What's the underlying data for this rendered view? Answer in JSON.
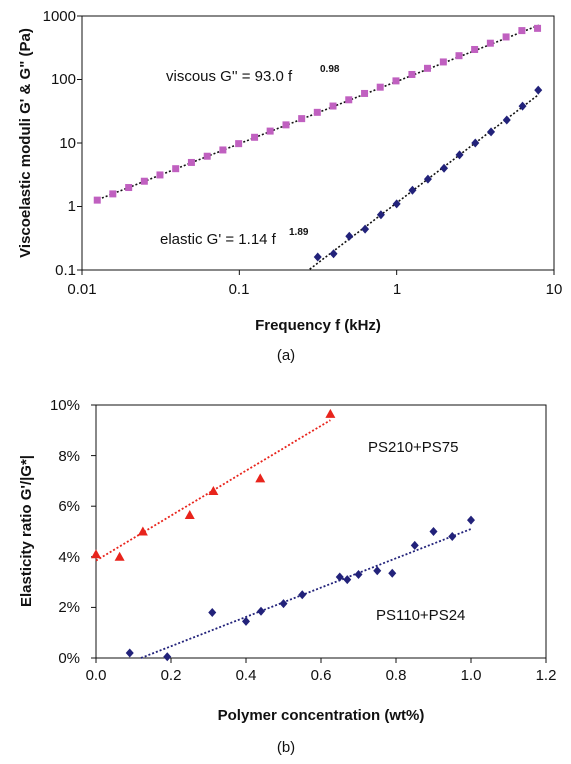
{
  "chart_data": [
    {
      "type": "scatter",
      "panel_label": "(a)",
      "xlabel": "Frequency f (kHz)",
      "ylabel": "Viscoelastic moduli G' & G\" (Pa)",
      "x_scale": "log",
      "y_scale": "log",
      "xlim": [
        0.01,
        10
      ],
      "ylim": [
        0.1,
        1000
      ],
      "x_ticks": [
        "0.01",
        "0.1",
        "1",
        "10"
      ],
      "y_ticks": [
        "0.1",
        "1",
        "10",
        "100",
        "1000"
      ],
      "grid": false,
      "annotations": [
        {
          "text": "viscous G'' = 93.0 f",
          "exponent": "0.98"
        },
        {
          "text": "elastic G' = 1.14 f",
          "exponent": "1.89"
        }
      ],
      "series": [
        {
          "marker": "square",
          "color": "#c060c0",
          "x": [
            0.0125,
            0.0157,
            0.0198,
            0.0249,
            0.0313,
            0.0394,
            0.0496,
            0.0625,
            0.0786,
            0.099,
            0.125,
            0.157,
            0.198,
            0.249,
            0.313,
            0.394,
            0.496,
            0.625,
            0.786,
            0.99,
            1.25,
            1.57,
            1.98,
            2.49,
            3.13,
            3.94,
            4.96,
            6.25,
            7.86
          ],
          "y": [
            1.26,
            1.58,
            1.99,
            2.5,
            3.14,
            3.94,
            4.94,
            6.19,
            7.77,
            9.77,
            12.3,
            15.4,
            19.3,
            24.2,
            30.4,
            38.2,
            47.9,
            60.3,
            75.7,
            95.1,
            120,
            150,
            189,
            237,
            297,
            373,
            468,
            589,
            639
          ]
        },
        {
          "marker": "diamond",
          "color": "#22227a",
          "x": [
            0.315,
            0.397,
            0.5,
            0.63,
            0.794,
            1.0,
            1.26,
            1.58,
            2.0,
            2.51,
            3.16,
            3.98,
            5.01,
            6.31,
            7.94
          ],
          "y": [
            0.16,
            0.18,
            0.34,
            0.44,
            0.74,
            1.1,
            1.8,
            2.7,
            4.0,
            6.5,
            10.0,
            15.0,
            23.0,
            38.0,
            68.0
          ]
        }
      ],
      "fit_lines": [
        {
          "color": "#111111",
          "coef": 93.0,
          "exponent": 0.98,
          "x_range": [
            0.012,
            8
          ]
        },
        {
          "color": "#111111",
          "coef": 1.14,
          "exponent": 1.89,
          "x_range": [
            0.28,
            8
          ]
        }
      ]
    },
    {
      "type": "scatter",
      "panel_label": "(b)",
      "xlabel": "Polymer concentration (wt%)",
      "ylabel": "Elasticity ratio G'/|G*|",
      "xlim": [
        0,
        1.2
      ],
      "ylim": [
        0,
        10
      ],
      "x_ticks": [
        "0.0",
        "0.2",
        "0.4",
        "0.6",
        "0.8",
        "1.0",
        "1.2"
      ],
      "y_ticks": [
        "0%",
        "2%",
        "4%",
        "6%",
        "8%",
        "10%"
      ],
      "grid": false,
      "series": [
        {
          "name": "PS210+PS75",
          "marker": "triangle",
          "color": "#e8241c",
          "x": [
            0.0,
            0.063,
            0.125,
            0.25,
            0.313,
            0.438,
            0.625
          ],
          "y": [
            4.1,
            4.0,
            5.0,
            5.65,
            6.6,
            7.1,
            9.65
          ],
          "trend": {
            "color": "#e8241c",
            "x": [
              0,
              0.625
            ],
            "y": [
              3.85,
              9.4
            ]
          }
        },
        {
          "name": "PS110+PS24",
          "marker": "diamond",
          "color": "#22227a",
          "x": [
            0.09,
            0.19,
            0.31,
            0.4,
            0.44,
            0.5,
            0.55,
            0.65,
            0.67,
            0.7,
            0.75,
            0.79,
            0.85,
            0.9,
            0.95,
            1.0
          ],
          "y": [
            0.2,
            0.05,
            1.8,
            1.45,
            1.85,
            2.15,
            2.5,
            3.2,
            3.1,
            3.3,
            3.45,
            3.35,
            4.45,
            5.0,
            4.8,
            5.45
          ],
          "trend": {
            "color": "#22227a",
            "x": [
              0.12,
              1.0
            ],
            "y": [
              0.0,
              5.1
            ]
          }
        }
      ]
    }
  ]
}
